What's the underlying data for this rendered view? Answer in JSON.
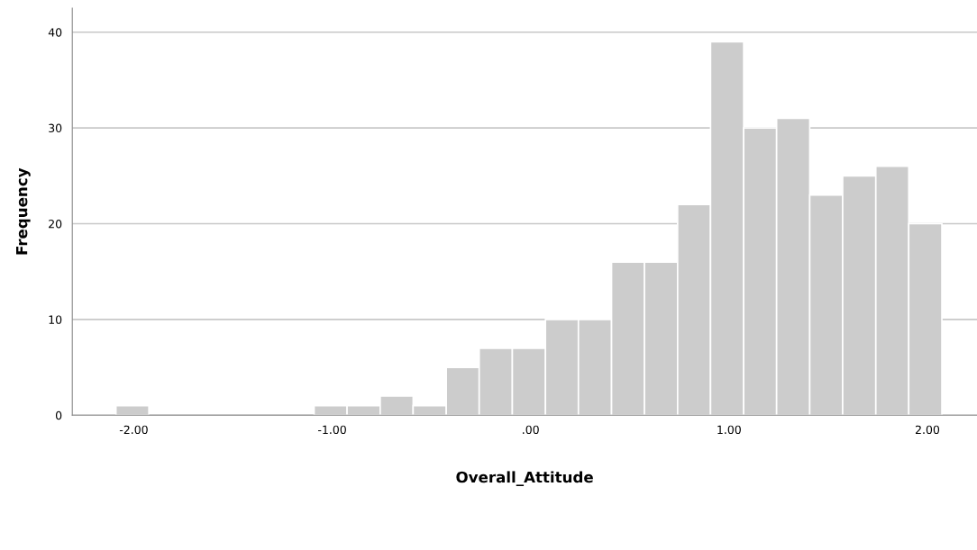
{
  "chart_data": {
    "type": "histogram",
    "xlabel": "Overall_Attitude",
    "ylabel": "Frequency",
    "bins": [
      -2.09,
      -1.924,
      -1.757,
      -1.591,
      -1.424,
      -1.258,
      -1.091,
      -0.925,
      -0.758,
      -0.592,
      -0.425,
      -0.259,
      -0.092,
      0.075,
      0.241,
      0.408,
      0.574,
      0.741,
      0.907,
      1.074,
      1.24,
      1.407,
      1.573,
      1.74,
      1.906,
      2.073
    ],
    "values": [
      1,
      0,
      0,
      0,
      0,
      0,
      1,
      1,
      2,
      1,
      5,
      7,
      7,
      10,
      10,
      16,
      16,
      22,
      39,
      30,
      31,
      23,
      25,
      26,
      20
    ],
    "color": "#cccccc",
    "xlim": [
      -2.31,
      2.25
    ],
    "xticks": [
      {
        "value": -2,
        "label": "-2.00"
      },
      {
        "value": -1,
        "label": "-1.00"
      },
      {
        "value": 0,
        "label": ".00"
      },
      {
        "value": 1,
        "label": "1.00"
      },
      {
        "value": 2,
        "label": "2.00"
      }
    ],
    "ylim": [
      0,
      42.5
    ],
    "yticks": [
      0,
      10,
      20,
      30,
      40
    ],
    "grid": "y"
  }
}
